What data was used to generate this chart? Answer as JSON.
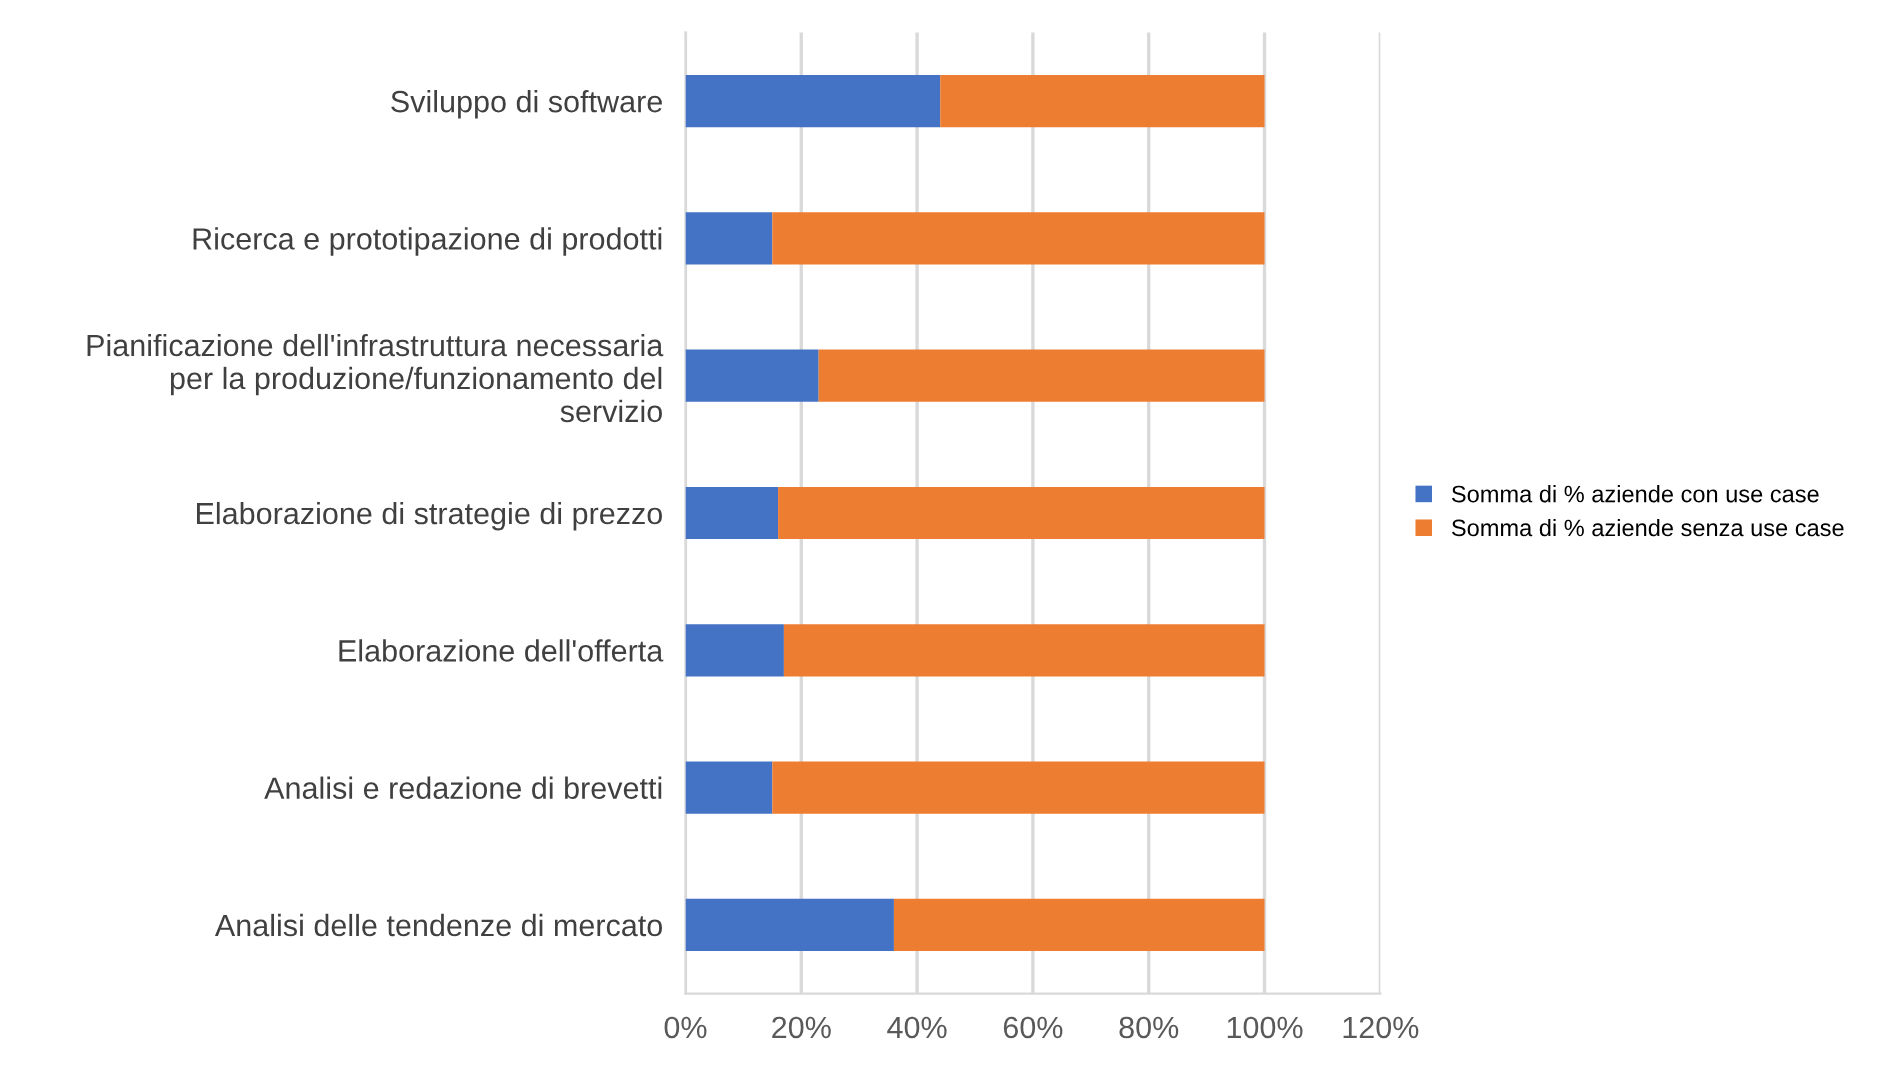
{
  "chart_data": {
    "type": "bar",
    "orientation": "horizontal",
    "stacked": true,
    "categories": [
      "Sviluppo di software",
      "Ricerca e prototipazione di prodotti",
      "Pianificazione dell'infrastruttura necessaria\nper la produzione/funzionamento del\nservizio",
      "Elaborazione di strategie di prezzo",
      "Elaborazione dell'offerta",
      "Analisi e redazione di brevetti",
      "Analisi delle tendenze di mercato"
    ],
    "series": [
      {
        "name": "Somma di % aziende con use case",
        "color": "#4472c4",
        "values": [
          44,
          15,
          23,
          16,
          17,
          15,
          36
        ]
      },
      {
        "name": "Somma di % aziende senza use case",
        "color": "#ed7d31",
        "values": [
          56,
          85,
          77,
          84,
          83,
          85,
          64
        ]
      }
    ],
    "xlim": [
      0,
      120
    ],
    "xticks": [
      {
        "value": 0,
        "label": "0%"
      },
      {
        "value": 20,
        "label": "20%"
      },
      {
        "value": 40,
        "label": "40%"
      },
      {
        "value": 60,
        "label": "60%"
      },
      {
        "value": 80,
        "label": "80%"
      },
      {
        "value": 100,
        "label": "100%"
      },
      {
        "value": 120,
        "label": "120%"
      }
    ],
    "grid": "x",
    "legend": "right"
  }
}
